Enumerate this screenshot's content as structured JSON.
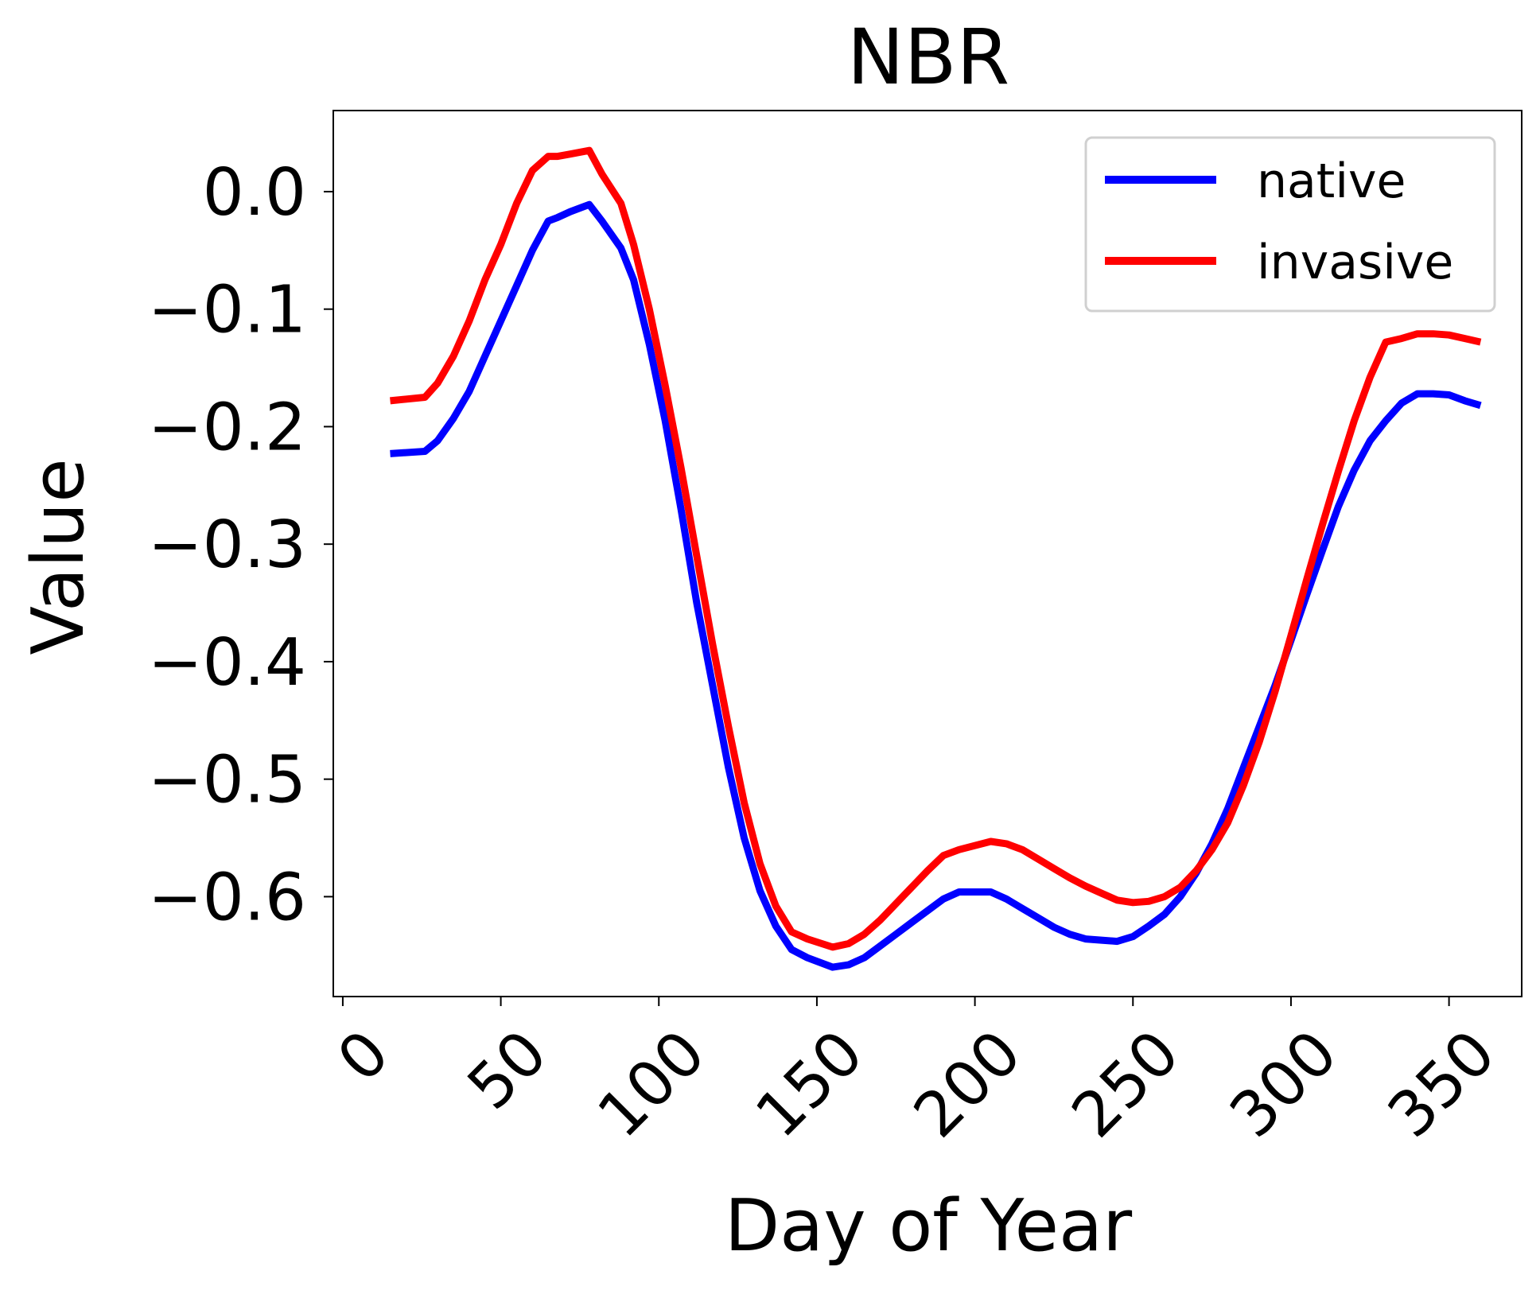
{
  "chart_data": {
    "type": "line",
    "title": "NBR",
    "xlabel": "Day of Year",
    "ylabel": "Value",
    "xlim": [
      -3,
      373
    ],
    "ylim": [
      -0.685,
      0.069
    ],
    "x_ticks": [
      0,
      50,
      100,
      150,
      200,
      250,
      300,
      350
    ],
    "x_tick_labels": [
      "0",
      "50",
      "100",
      "150",
      "200",
      "250",
      "300",
      "350"
    ],
    "x_tick_rotation": 45,
    "y_ticks": [
      0.0,
      -0.1,
      -0.2,
      -0.3,
      -0.4,
      -0.5,
      -0.6
    ],
    "y_tick_labels": [
      "0.0",
      "−0.1",
      "−0.2",
      "−0.3",
      "−0.4",
      "−0.5",
      "−0.6"
    ],
    "grid": false,
    "legend_position": "top-right",
    "series": [
      {
        "name": "native",
        "color": "#0000ff",
        "x": [
          15,
          26,
          30,
          35,
          40,
          45,
          50,
          55,
          60,
          65,
          68,
          72,
          78,
          82,
          88,
          92,
          97,
          102,
          107,
          112,
          117,
          122,
          127,
          132,
          137,
          142,
          147,
          155,
          160,
          165,
          170,
          175,
          180,
          185,
          190,
          195,
          205,
          210,
          215,
          220,
          225,
          230,
          235,
          240,
          245,
          250,
          255,
          260,
          265,
          270,
          275,
          280,
          285,
          290,
          295,
          300,
          305,
          310,
          315,
          320,
          325,
          330,
          335,
          340,
          345,
          350,
          355,
          360
        ],
        "y": [
          -0.223,
          -0.221,
          -0.212,
          -0.193,
          -0.17,
          -0.14,
          -0.11,
          -0.08,
          -0.05,
          -0.025,
          -0.022,
          -0.017,
          -0.011,
          -0.025,
          -0.048,
          -0.075,
          -0.13,
          -0.195,
          -0.27,
          -0.35,
          -0.42,
          -0.49,
          -0.55,
          -0.595,
          -0.625,
          -0.645,
          -0.652,
          -0.66,
          -0.658,
          -0.652,
          -0.642,
          -0.632,
          -0.622,
          -0.612,
          -0.602,
          -0.596,
          -0.596,
          -0.602,
          -0.61,
          -0.618,
          -0.626,
          -0.632,
          -0.636,
          -0.637,
          -0.638,
          -0.634,
          -0.625,
          -0.615,
          -0.6,
          -0.58,
          -0.555,
          -0.525,
          -0.49,
          -0.455,
          -0.42,
          -0.382,
          -0.343,
          -0.305,
          -0.268,
          -0.237,
          -0.212,
          -0.195,
          -0.18,
          -0.172,
          -0.172,
          -0.173,
          -0.178,
          -0.182
        ]
      },
      {
        "name": "invasive",
        "color": "#ff0000",
        "x": [
          15,
          26,
          30,
          35,
          40,
          45,
          50,
          55,
          60,
          65,
          68,
          72,
          78,
          82,
          88,
          92,
          97,
          102,
          107,
          112,
          117,
          122,
          127,
          132,
          137,
          142,
          147,
          155,
          160,
          165,
          170,
          175,
          180,
          185,
          190,
          195,
          205,
          210,
          215,
          220,
          225,
          230,
          235,
          240,
          245,
          250,
          255,
          260,
          265,
          270,
          275,
          280,
          285,
          290,
          295,
          300,
          305,
          310,
          315,
          320,
          325,
          330,
          335,
          340,
          345,
          350,
          355,
          360
        ],
        "y": [
          -0.178,
          -0.175,
          -0.163,
          -0.14,
          -0.11,
          -0.075,
          -0.045,
          -0.01,
          0.018,
          0.03,
          0.03,
          0.032,
          0.035,
          0.015,
          -0.01,
          -0.045,
          -0.1,
          -0.165,
          -0.235,
          -0.31,
          -0.385,
          -0.455,
          -0.52,
          -0.572,
          -0.608,
          -0.63,
          -0.636,
          -0.643,
          -0.64,
          -0.632,
          -0.62,
          -0.606,
          -0.592,
          -0.578,
          -0.565,
          -0.56,
          -0.553,
          -0.555,
          -0.56,
          -0.568,
          -0.576,
          -0.584,
          -0.591,
          -0.597,
          -0.603,
          -0.605,
          -0.604,
          -0.6,
          -0.592,
          -0.578,
          -0.56,
          -0.537,
          -0.505,
          -0.468,
          -0.425,
          -0.378,
          -0.33,
          -0.283,
          -0.238,
          -0.195,
          -0.158,
          -0.128,
          -0.125,
          -0.121,
          -0.121,
          -0.122,
          -0.125,
          -0.128
        ]
      }
    ]
  }
}
